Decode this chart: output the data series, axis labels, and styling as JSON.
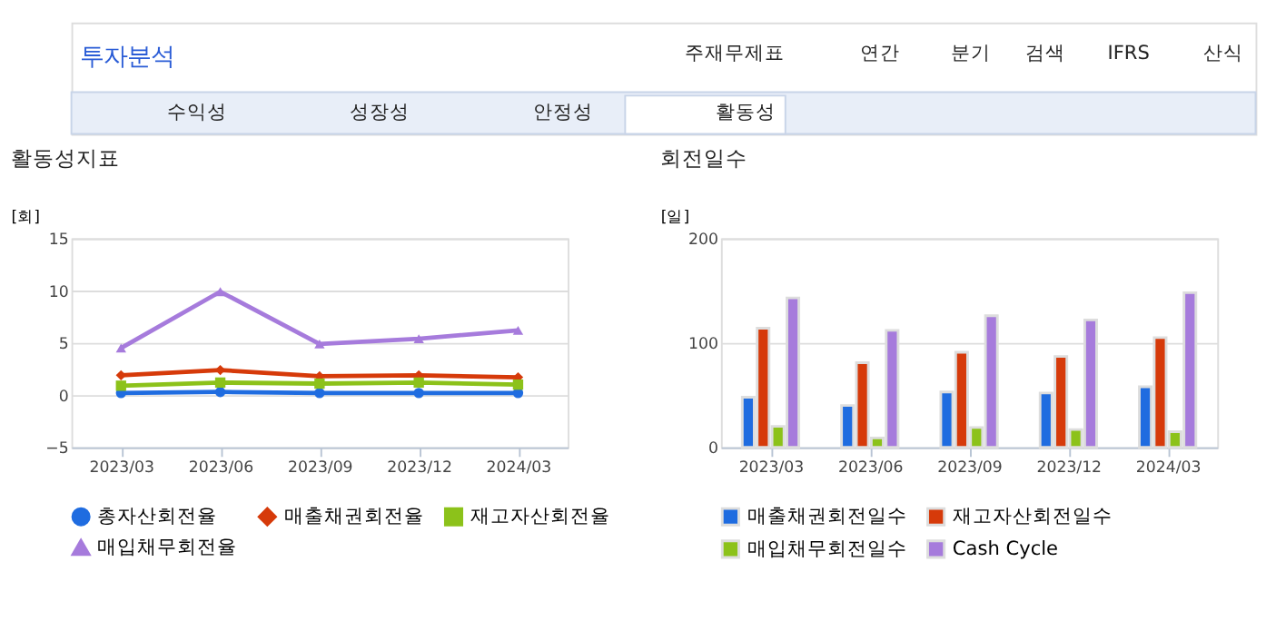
{
  "chart_data": [
    {
      "type": "other",
      "title": "투자분석",
      "annotations": [
        "주재무제표",
        "연간",
        "분기",
        "검색",
        "IFRS",
        "산식",
        "수익성",
        "성장성",
        "안정성",
        "활동성"
      ]
    },
    {
      "type": "line",
      "title": "활동성지표",
      "ylabel": "[회]",
      "categories": [
        "2023/03",
        "2023/06",
        "2023/09",
        "2023/12",
        "2024/03"
      ],
      "ylim": [
        -5,
        15
      ],
      "yticks": [
        -5,
        0,
        5,
        10,
        15
      ],
      "grid": "y",
      "legend": "bottom",
      "series": [
        {
          "name": "총자산회전율",
          "color": "#1f6ce0",
          "marker": "circle",
          "values": [
            0.2,
            0.3,
            0.2,
            0.2,
            0.2
          ]
        },
        {
          "name": "매출채권회전율",
          "color": "#d63a0a",
          "marker": "diamond",
          "values": [
            1.9,
            2.4,
            1.8,
            1.9,
            1.7
          ]
        },
        {
          "name": "재고자산회전율",
          "color": "#8cc21a",
          "marker": "square",
          "values": [
            0.9,
            1.2,
            1.1,
            1.2,
            1.0
          ]
        },
        {
          "name": "매입채무회전율",
          "color": "#a67bdc",
          "marker": "triangle",
          "values": [
            4.5,
            9.9,
            4.9,
            5.4,
            6.2
          ]
        }
      ]
    },
    {
      "type": "bar",
      "title": "회전일수",
      "ylabel": "[일]",
      "categories": [
        "2023/03",
        "2023/06",
        "2023/09",
        "2023/12",
        "2024/03"
      ],
      "ylim": [
        0,
        200
      ],
      "yticks": [
        0,
        100,
        200
      ],
      "grid": "y",
      "legend": "bottom",
      "series": [
        {
          "name": "매출채권회전일수",
          "color": "#1f6ce0",
          "values": [
            48,
            40,
            53,
            52,
            58
          ]
        },
        {
          "name": "재고자산회전일수",
          "color": "#d63a0a",
          "values": [
            114,
            81,
            91,
            87,
            105
          ]
        },
        {
          "name": "매입채무회전일수",
          "color": "#8cc21a",
          "values": [
            20,
            9,
            19,
            17,
            15
          ]
        },
        {
          "name": "Cash Cycle",
          "color": "#a67bdc",
          "values": [
            143,
            112,
            126,
            122,
            148
          ]
        }
      ]
    }
  ]
}
